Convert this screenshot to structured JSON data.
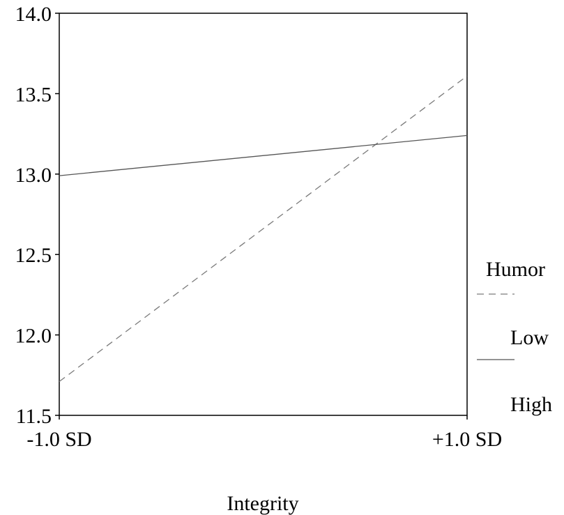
{
  "chart_data": {
    "type": "line",
    "title": "",
    "xlabel": "Integrity",
    "ylabel": "",
    "categories": [
      "-1.0 SD",
      "+1.0 SD"
    ],
    "ylim": [
      11.5,
      14.0
    ],
    "yticks": [
      "11.5",
      "12.0",
      "12.5",
      "13.0",
      "13.5",
      "14.0"
    ],
    "grid": false,
    "legend_placement": "right",
    "legend_title": "Humor",
    "series": [
      {
        "name": "Low",
        "values": [
          11.71,
          13.61
        ],
        "style": "dashed",
        "color": "#7a7a7a"
      },
      {
        "name": "High",
        "values": [
          12.99,
          13.24
        ],
        "style": "solid",
        "color": "#555555"
      }
    ]
  }
}
